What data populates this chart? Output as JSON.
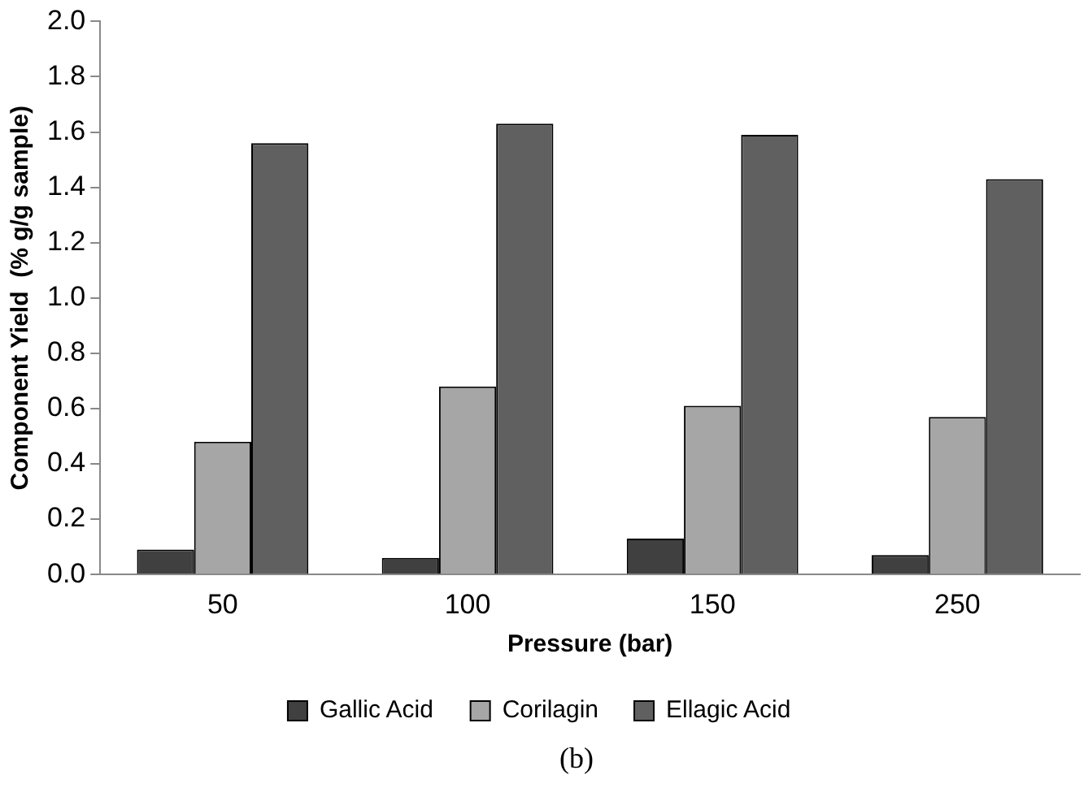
{
  "chart_data": {
    "type": "bar",
    "xlabel": "Pressure (bar)",
    "ylabel": "Component Yield  (% g/g sample)",
    "categories": [
      "50",
      "100",
      "150",
      "250"
    ],
    "series": [
      {
        "name": "Gallic Acid",
        "color": "#404040",
        "values": [
          0.09,
          0.06,
          0.13,
          0.07
        ]
      },
      {
        "name": "Corilagin",
        "color": "#a6a6a6",
        "values": [
          0.48,
          0.68,
          0.61,
          0.57
        ]
      },
      {
        "name": "Ellagic Acid",
        "color": "#606060",
        "values": [
          1.56,
          1.63,
          1.59,
          1.43
        ]
      }
    ],
    "ylim": [
      0,
      2
    ],
    "yticks": [
      {
        "value": 0,
        "label": "0.0"
      },
      {
        "value": 0.2,
        "label": "0.2"
      },
      {
        "value": 0.4,
        "label": "0.4"
      },
      {
        "value": 0.6,
        "label": "0.6"
      },
      {
        "value": 0.8,
        "label": "0.8"
      },
      {
        "value": 1,
        "label": "1.0"
      },
      {
        "value": 1.2,
        "label": "1.2"
      },
      {
        "value": 1.4,
        "label": "1.4"
      },
      {
        "value": 1.6,
        "label": "1.6"
      },
      {
        "value": 1.8,
        "label": "1.8"
      },
      {
        "value": 2,
        "label": "2.0"
      }
    ],
    "grid": false,
    "legend": "bottom",
    "annotations": [
      "(b)"
    ]
  }
}
